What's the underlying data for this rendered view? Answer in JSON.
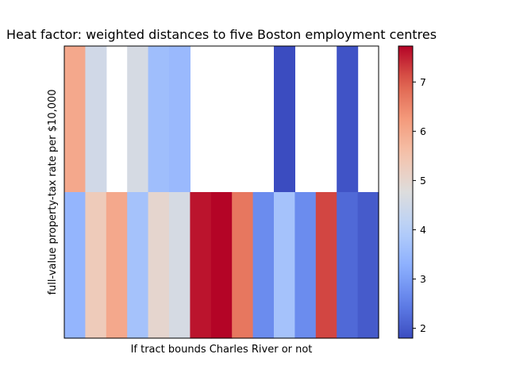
{
  "chart_data": {
    "type": "heatmap",
    "title": "Heat factor: weighted distances to five Boston employment centres",
    "xlabel": "If tract bounds Charles River or not",
    "ylabel": "full-value property-tax rate per $10,000",
    "colormap": "coolwarm",
    "vmin": 1.8,
    "vmax": 7.73,
    "colorbar_ticks": [
      2,
      3,
      4,
      5,
      6,
      7
    ],
    "n_columns": 15,
    "rows": [
      [
        6.0,
        4.5,
        null,
        4.6,
        3.6,
        3.5,
        null,
        null,
        null,
        null,
        1.8,
        null,
        null,
        1.9,
        null
      ],
      [
        3.4,
        5.3,
        6.0,
        3.7,
        5.0,
        4.6,
        7.6,
        7.73,
        6.7,
        2.7,
        3.7,
        2.7,
        7.2,
        2.2,
        2.0
      ]
    ]
  }
}
